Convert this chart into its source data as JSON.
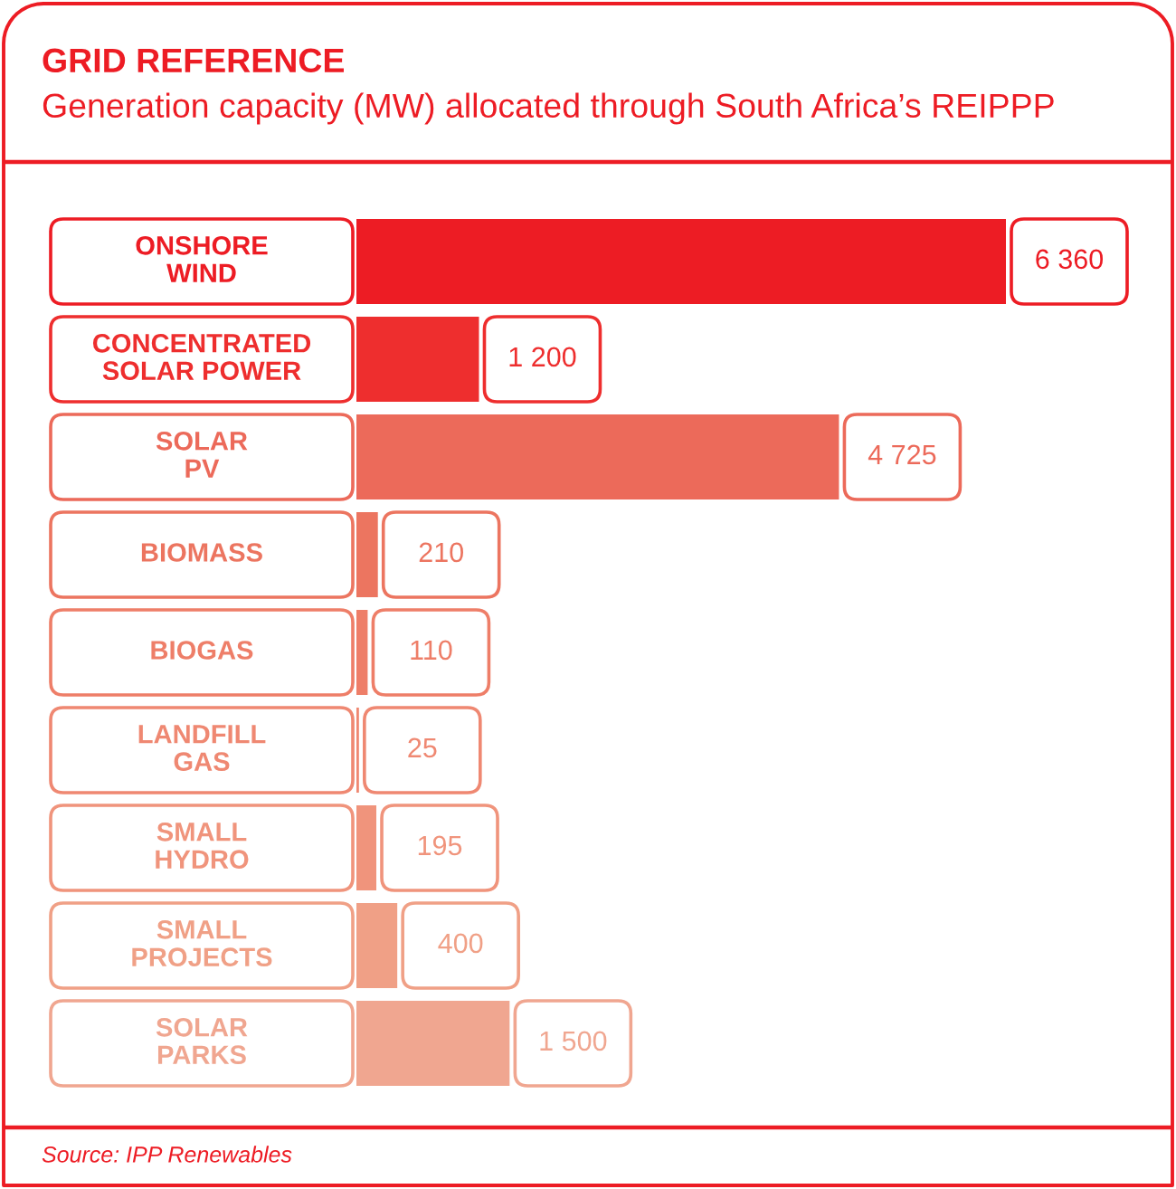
{
  "chart_data": {
    "type": "bar",
    "orientation": "horizontal",
    "title": "GRID REFERENCE",
    "subtitle": "Generation capacity (MW) allocated through South Africa’s REIPPP",
    "categories": [
      "ONSHORE\nWIND",
      "CONCENTRATED\nSOLAR POWER",
      "SOLAR\nPV",
      "BIOMASS",
      "BIOGAS",
      "LANDFILL\nGAS",
      "SMALL\nHYDRO",
      "SMALL\nPROJECTS",
      "SOLAR\nPARKS"
    ],
    "values": [
      6360,
      1200,
      4725,
      210,
      110,
      25,
      195,
      400,
      1500
    ],
    "value_labels": [
      "6 360",
      "1 200",
      "4 725",
      "210",
      "110",
      "25",
      "195",
      "400",
      "1 500"
    ],
    "colors": [
      "#ed1c24",
      "#ee2e2e",
      "#ec6a5a",
      "#ec7560",
      "#ee7e68",
      "#ef8872",
      "#f0947c",
      "#f0a086",
      "#f0a690"
    ],
    "tick_labels": "y",
    "annotations": [
      "Source: IPP Renewables"
    ]
  }
}
